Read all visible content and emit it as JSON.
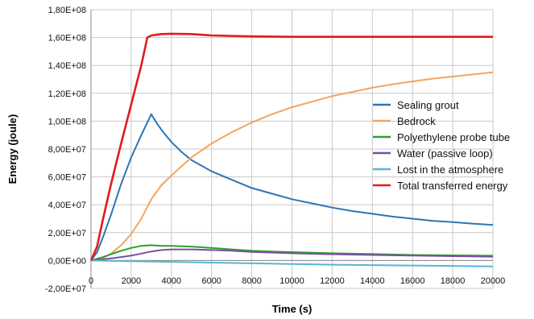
{
  "chart_data": {
    "type": "line",
    "title": "",
    "xlabel": "Time (s)",
    "ylabel": "Energy (joule)",
    "xlim": [
      0,
      20000
    ],
    "ylim": [
      -20000000,
      180000000
    ],
    "grid": true,
    "legend_position": "center-right",
    "x_ticks": [
      "0",
      "2000",
      "4000",
      "6000",
      "8000",
      "10000",
      "12000",
      "14000",
      "16000",
      "18000",
      "20000"
    ],
    "x_tick_values": [
      0,
      2000,
      4000,
      6000,
      8000,
      10000,
      12000,
      14000,
      16000,
      18000,
      20000
    ],
    "y_ticks": [
      "-2,00E+07",
      "0,00E+00",
      "2,00E+07",
      "4,00E+07",
      "6,00E+07",
      "8,00E+07",
      "1,00E+08",
      "1,20E+08",
      "1,40E+08",
      "1,60E+08",
      "1,80E+08"
    ],
    "y_tick_values": [
      -20000000,
      0,
      20000000,
      40000000,
      60000000,
      80000000,
      100000000,
      120000000,
      140000000,
      160000000,
      180000000
    ],
    "series": [
      {
        "name": "Sealing grout",
        "color": "#2e75b6",
        "x": [
          0,
          300,
          600,
          1000,
          1500,
          2000,
          2500,
          2900,
          3000,
          3300,
          3600,
          4000,
          4500,
          5000,
          6000,
          7000,
          8000,
          9000,
          10000,
          11000,
          12000,
          13000,
          14000,
          15000,
          16000,
          17000,
          18000,
          19000,
          20000
        ],
        "y": [
          0,
          6000000,
          17000000,
          33000000,
          55000000,
          74000000,
          90000000,
          102000000,
          105000000,
          98000000,
          92000000,
          85000000,
          78000000,
          72000000,
          64000000,
          58000000,
          52000000,
          48000000,
          44000000,
          41000000,
          38000000,
          35500000,
          33500000,
          31500000,
          30000000,
          28500000,
          27500000,
          26500000,
          25500000
        ]
      },
      {
        "name": "Bedrock",
        "color": "#f4a460",
        "x": [
          0,
          500,
          1000,
          1500,
          2000,
          2500,
          3000,
          3500,
          4000,
          5000,
          6000,
          7000,
          8000,
          9000,
          10000,
          11000,
          12000,
          13000,
          14000,
          15000,
          16000,
          17000,
          18000,
          19000,
          20000
        ],
        "y": [
          0,
          1000000,
          5000000,
          11000000,
          19000000,
          30000000,
          44000000,
          54000000,
          61000000,
          74000000,
          84000000,
          92000000,
          99000000,
          105000000,
          110000000,
          114000000,
          118000000,
          121000000,
          124000000,
          126500000,
          128500000,
          130500000,
          132000000,
          133500000,
          135000000
        ]
      },
      {
        "name": "Polyethylene probe tube",
        "color": "#2ca02c",
        "x": [
          0,
          500,
          1000,
          1500,
          2000,
          2500,
          3000,
          3500,
          4000,
          5000,
          6000,
          7000,
          8000,
          9000,
          10000,
          12000,
          14000,
          16000,
          18000,
          20000
        ],
        "y": [
          0,
          2000000,
          4500000,
          7000000,
          9000000,
          10500000,
          11000000,
          10500000,
          10500000,
          10000000,
          9000000,
          8000000,
          7000000,
          6500000,
          6000000,
          5200000,
          4600000,
          4000000,
          3700000,
          3400000
        ]
      },
      {
        "name": "Water (passive loop)",
        "color": "#7b4ea3",
        "x": [
          0,
          500,
          1000,
          1500,
          2000,
          2500,
          3000,
          3500,
          4000,
          5000,
          6000,
          7000,
          8000,
          10000,
          12000,
          14000,
          16000,
          18000,
          20000
        ],
        "y": [
          0,
          700000,
          1500000,
          2500000,
          3500000,
          5000000,
          6500000,
          7500000,
          8000000,
          8000000,
          7500000,
          7000000,
          6200000,
          5200000,
          4500000,
          4000000,
          3500000,
          3100000,
          2800000
        ]
      },
      {
        "name": "Lost in the atmosphere",
        "color": "#5ab4d6",
        "x": [
          0,
          2000,
          4000,
          6000,
          8000,
          10000,
          12000,
          14000,
          16000,
          18000,
          20000
        ],
        "y": [
          0,
          -500000,
          -1000000,
          -1500000,
          -2000000,
          -2500000,
          -3000000,
          -3300000,
          -3600000,
          -3900000,
          -4200000
        ]
      },
      {
        "name": "Total transferred energy",
        "color": "#e31a1c",
        "x": [
          0,
          300,
          600,
          1000,
          1500,
          2000,
          2500,
          2800,
          3000,
          3500,
          4000,
          5000,
          6000,
          8000,
          10000,
          12000,
          14000,
          16000,
          18000,
          20000
        ],
        "y": [
          0,
          10000000,
          30000000,
          55000000,
          84000000,
          112000000,
          140000000,
          160000000,
          161500000,
          162500000,
          162700000,
          162500000,
          161500000,
          160800000,
          160500000,
          160500000,
          160500000,
          160500000,
          160500000,
          160500000
        ]
      }
    ]
  }
}
